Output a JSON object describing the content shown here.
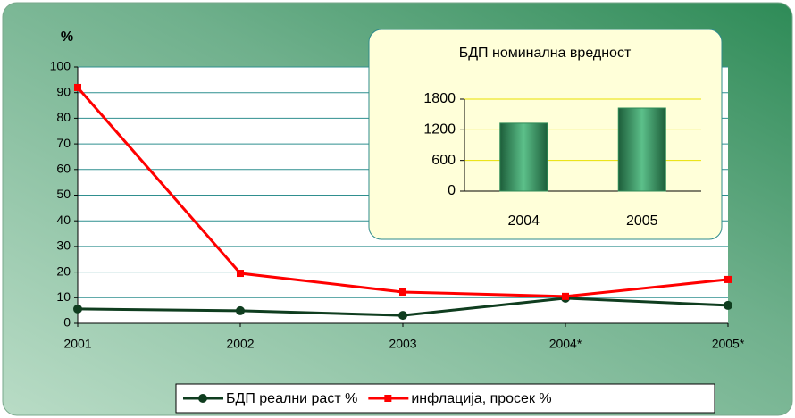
{
  "chart_data": [
    {
      "type": "line",
      "y_label": "%",
      "categories": [
        "2001",
        "2002",
        "2003",
        "2004*",
        "2005*"
      ],
      "series": [
        {
          "name": "БДП реални раст %",
          "color": "#0f3d1f",
          "marker": "circle",
          "values": [
            5.6,
            4.9,
            3.1,
            9.8,
            7.0
          ]
        },
        {
          "name": "инфлација, просек %",
          "color": "#ff0000",
          "marker": "square",
          "values": [
            92,
            19.5,
            12.2,
            10.5,
            17.1
          ]
        }
      ],
      "ylim": [
        0,
        100
      ],
      "yticks": [
        0,
        10,
        20,
        30,
        40,
        50,
        60,
        70,
        80,
        90,
        100
      ],
      "grid": true,
      "legend": "bottom"
    },
    {
      "type": "bar",
      "title": "БДП номинална вредност",
      "categories": [
        "2004",
        "2005"
      ],
      "values": [
        1330,
        1625
      ],
      "color": "#2e8b57",
      "ylim": [
        0,
        1800
      ],
      "yticks": [
        0,
        600,
        1200,
        1800
      ],
      "grid": true
    }
  ]
}
